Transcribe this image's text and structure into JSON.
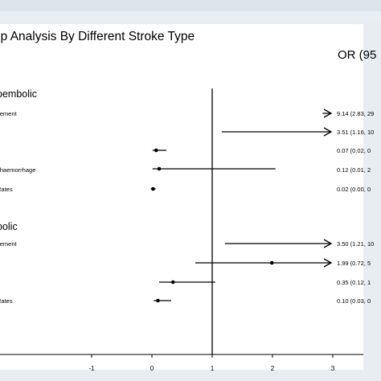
{
  "chart_data": {
    "type": "forest",
    "title": "up Analysis By Different Stroke Type",
    "estimate_header": "OR (95",
    "reference_line": 1,
    "xlim": [
      -2.0,
      3.0
    ],
    "x_ticks": [
      -1,
      0,
      1,
      2,
      3
    ],
    "x_tick_labels": [
      "-1",
      "0",
      "1",
      "2",
      "3"
    ],
    "groups": [
      {
        "label": "pembolic",
        "rows": [
          {
            "label": "vement",
            "estimate": 9.14,
            "lower": 2.83,
            "upper": null,
            "text": "9.14 (2.83, 29",
            "truncated_right": true,
            "point_visible": false
          },
          {
            "label": "",
            "estimate": 3.51,
            "lower": 1.16,
            "upper": null,
            "text": "3.51 (1.16, 10",
            "truncated_right": true,
            "point_visible": false
          },
          {
            "label": "",
            "estimate": 0.07,
            "lower": 0.02,
            "upper": null,
            "text": "0.07 (0.02, 0",
            "truncated_right": false,
            "point_visible": true,
            "display_lo": 0.01,
            "display_hi": 0.24
          },
          {
            "label": "l haemorrhage",
            "estimate": 0.12,
            "lower": 0.01,
            "upper": null,
            "text": "0.12 (0.01, 2",
            "truncated_right": false,
            "point_visible": true,
            "display_lo": 0.01,
            "display_hi": 2.05
          },
          {
            "label": "Rates",
            "estimate": 0.02,
            "lower": 0.0,
            "upper": null,
            "text": "0.02 (0.00, 0",
            "truncated_right": false,
            "point_visible": true,
            "display_lo": -0.02,
            "display_hi": 0.06
          }
        ]
      },
      {
        "label": "bolic",
        "rows": [
          {
            "label": "vement",
            "estimate": 3.5,
            "lower": 1.21,
            "upper": null,
            "text": "3.50 (1.21, 10",
            "truncated_right": true,
            "point_visible": false
          },
          {
            "label": "",
            "estimate": 1.99,
            "lower": 0.72,
            "upper": null,
            "text": "1.99 (0.72, 5",
            "truncated_right": true,
            "point_visible": true
          },
          {
            "label": "",
            "estimate": 0.35,
            "lower": 0.12,
            "upper": null,
            "text": "0.35 (0.12, 1",
            "truncated_right": false,
            "point_visible": true,
            "display_lo": 0.12,
            "display_hi": 1.05
          },
          {
            "label": "Rates",
            "estimate": 0.1,
            "lower": 0.03,
            "upper": null,
            "text": "0.10 (0.03, 0",
            "truncated_right": false,
            "point_visible": true,
            "display_lo": 0.03,
            "display_hi": 0.32
          }
        ]
      }
    ]
  }
}
